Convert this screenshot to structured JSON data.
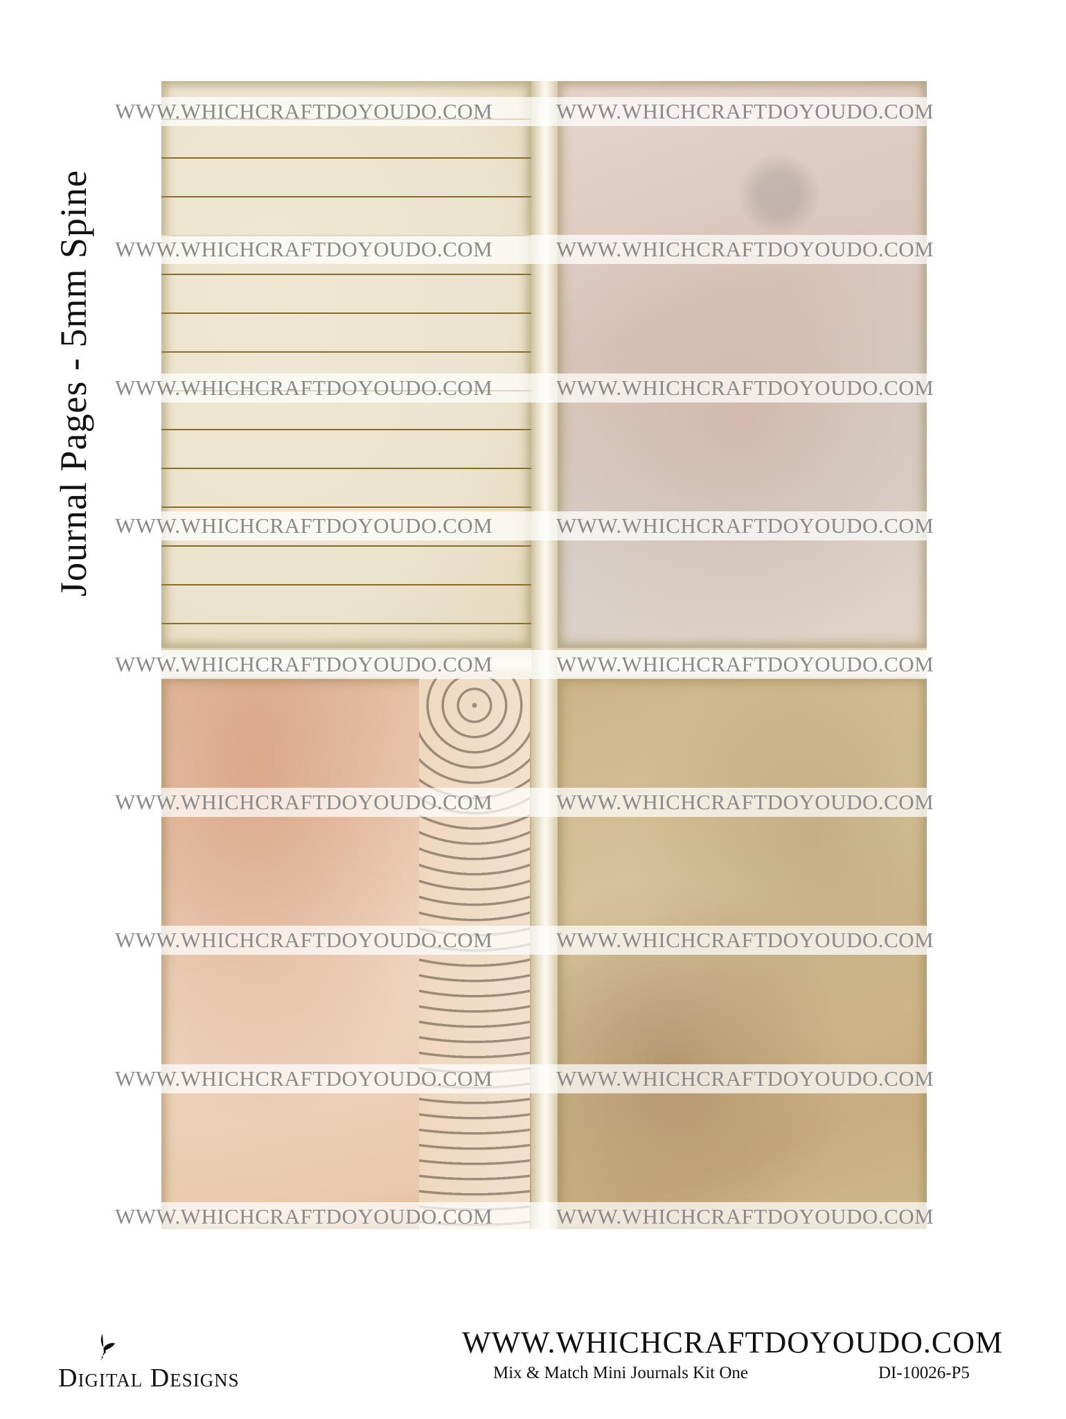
{
  "title": "Journal Pages - 5mm Spine",
  "watermark": "WWW.WHICHCRAFTDOYOUDO.COM",
  "footer": {
    "logo_text": "Digital Designs",
    "url": "WWW.WHICHCRAFTDOYOUDO.COM",
    "kit_name": "Mix & Match Mini Journals Kit One",
    "product_code": "DI-10026-P5"
  },
  "pages": [
    {
      "position": "top-left",
      "style": "lined cream parchment"
    },
    {
      "position": "top-right",
      "style": "mottled pink-grey"
    },
    {
      "position": "bottom-left",
      "style": "peach marble with floral border"
    },
    {
      "position": "bottom-right",
      "style": "stained tan"
    }
  ]
}
